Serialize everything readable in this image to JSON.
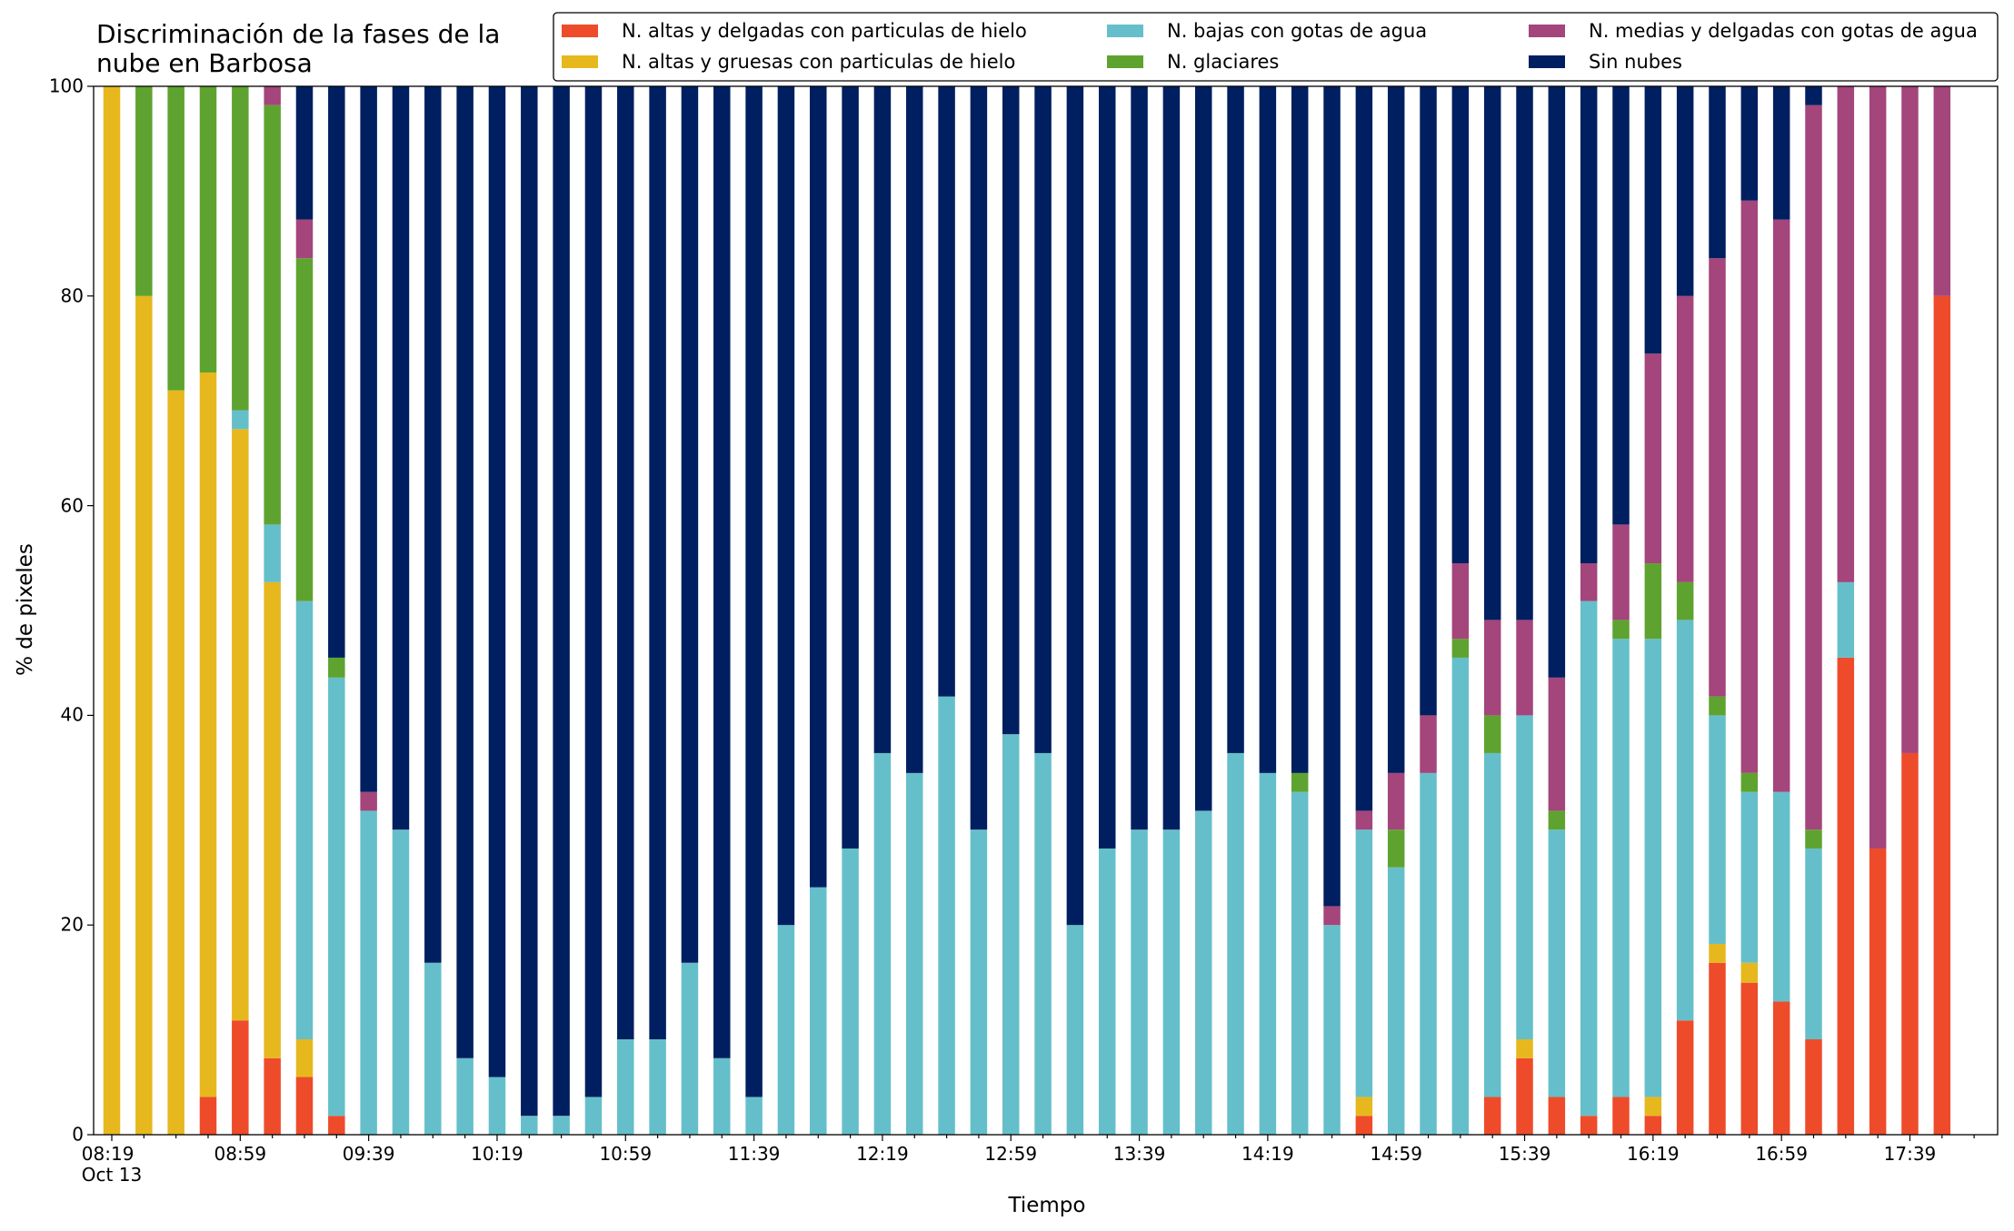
{
  "chart_data": {
    "type": "stacked_bar",
    "title": "Discriminación de la fases de la\nnube en Barbosa",
    "x_label": "Tiempo",
    "y_label": "% de pixeles",
    "legend": "top",
    "grid": false,
    "ylim": [
      0,
      100
    ],
    "yticks": [
      0,
      20,
      40,
      60,
      80,
      100
    ],
    "categories": [
      "08:19\nOct 13",
      null,
      null,
      null,
      "08:59",
      null,
      null,
      null,
      "09:39",
      null,
      null,
      null,
      "10:19",
      null,
      null,
      null,
      "10:59",
      null,
      null,
      null,
      "11:39",
      null,
      null,
      null,
      "12:19",
      null,
      null,
      null,
      "12:59",
      null,
      null,
      null,
      "13:39",
      null,
      null,
      null,
      "14:19",
      null,
      null,
      null,
      "14:59",
      null,
      null,
      null,
      "15:39",
      null,
      null,
      null,
      "16:19",
      null,
      null,
      null,
      "16:59",
      null,
      null,
      null,
      "17:39",
      null
    ],
    "series": [
      {
        "name": "N. altas y delgadas con particulas de hielo",
        "color": "#ee4b2b",
        "values": [
          0,
          0,
          0,
          3.6,
          10.9,
          7.3,
          5.5,
          1.8,
          0,
          0,
          0,
          0,
          0,
          0,
          0,
          0,
          0,
          0,
          0,
          0,
          0,
          0,
          0,
          0,
          0,
          0,
          0,
          0,
          0,
          0,
          0,
          0,
          0,
          0,
          0,
          0,
          0,
          0,
          0,
          1.8,
          0,
          0,
          0,
          3.6,
          7.3,
          3.6,
          1.8,
          3.6,
          1.8,
          10.9,
          16.4,
          14.5,
          12.7,
          9.1,
          45.5,
          27.3,
          36.4,
          80
        ]
      },
      {
        "name": "N. altas y gruesas con particulas de hielo",
        "color": "#e6b81e",
        "values": [
          100,
          80,
          71,
          69.1,
          56.4,
          45.4,
          3.6,
          0,
          0,
          0,
          0,
          0,
          0,
          0,
          0,
          0,
          0,
          0,
          0,
          0,
          0,
          0,
          0,
          0,
          0,
          0,
          0,
          0,
          0,
          0,
          0,
          0,
          0,
          0,
          0,
          0,
          0,
          0,
          0,
          1.8,
          0,
          0,
          0,
          0,
          1.8,
          0,
          0,
          0,
          1.8,
          0,
          1.8,
          1.9,
          0,
          0,
          0,
          0,
          0,
          0
        ]
      },
      {
        "name": "N. bajas con gotas de agua",
        "color": "#65bfca",
        "values": [
          0,
          0,
          0,
          0,
          1.8,
          5.5,
          41.8,
          41.8,
          30.9,
          29.1,
          16.4,
          7.3,
          5.5,
          1.8,
          1.8,
          3.6,
          9.1,
          9.1,
          16.4,
          7.3,
          3.6,
          20,
          23.6,
          27.3,
          36.4,
          34.5,
          41.8,
          29.1,
          38.2,
          36.4,
          20,
          27.3,
          29.1,
          29.1,
          30.9,
          36.4,
          34.5,
          32.7,
          20,
          25.5,
          25.5,
          34.5,
          45.5,
          32.8,
          30.9,
          25.5,
          49.1,
          43.7,
          43.7,
          38.2,
          21.8,
          16.3,
          20,
          18.2,
          7.2,
          0,
          0,
          0
        ]
      },
      {
        "name": "N. glaciares",
        "color": "#5ea32f",
        "values": [
          0,
          20,
          29,
          27.3,
          30.9,
          40,
          32.7,
          1.9,
          0,
          0,
          0,
          0,
          0,
          0,
          0,
          0,
          0,
          0,
          0,
          0,
          0,
          0,
          0,
          0,
          0,
          0,
          0,
          0,
          0,
          0,
          0,
          0,
          0,
          0,
          0,
          0,
          0,
          1.8,
          0,
          0,
          3.6,
          0,
          1.8,
          3.6,
          0,
          1.8,
          0,
          1.8,
          7.2,
          3.6,
          1.8,
          1.8,
          0,
          1.8,
          0,
          0,
          0,
          0
        ]
      },
      {
        "name": "N. medias y delgadas con gotas de agua",
        "color": "#a4457b",
        "values": [
          0,
          0,
          0,
          0,
          0,
          1.8,
          3.7,
          0,
          1.8,
          0,
          0,
          0,
          0,
          0,
          0,
          0,
          0,
          0,
          0,
          0,
          0,
          0,
          0,
          0,
          0,
          0,
          0,
          0,
          0,
          0,
          0,
          0,
          0,
          0,
          0,
          0,
          0,
          0,
          1.8,
          1.8,
          5.4,
          5.5,
          7.2,
          9.1,
          9.1,
          12.7,
          3.6,
          9.1,
          20,
          27.3,
          41.8,
          54.6,
          54.6,
          69.1,
          47.3,
          72.7,
          63.6,
          20
        ]
      },
      {
        "name": "Sin nubes",
        "color": "#001f60",
        "values": [
          0,
          0,
          0,
          0,
          0,
          0,
          12.7,
          54.5,
          67.3,
          70.9,
          83.6,
          92.7,
          94.5,
          98.2,
          98.2,
          96.4,
          90.9,
          90.9,
          83.6,
          92.7,
          96.4,
          80,
          76.4,
          72.7,
          63.6,
          65.5,
          58.2,
          70.9,
          61.8,
          63.6,
          80,
          72.7,
          70.9,
          70.9,
          69.1,
          63.6,
          65.5,
          65.5,
          78.2,
          69.1,
          65.5,
          60,
          45.5,
          50.9,
          50.9,
          56.4,
          45.5,
          41.8,
          25.5,
          20,
          16.4,
          10.9,
          12.7,
          1.8,
          0,
          0,
          0,
          0
        ]
      }
    ]
  }
}
